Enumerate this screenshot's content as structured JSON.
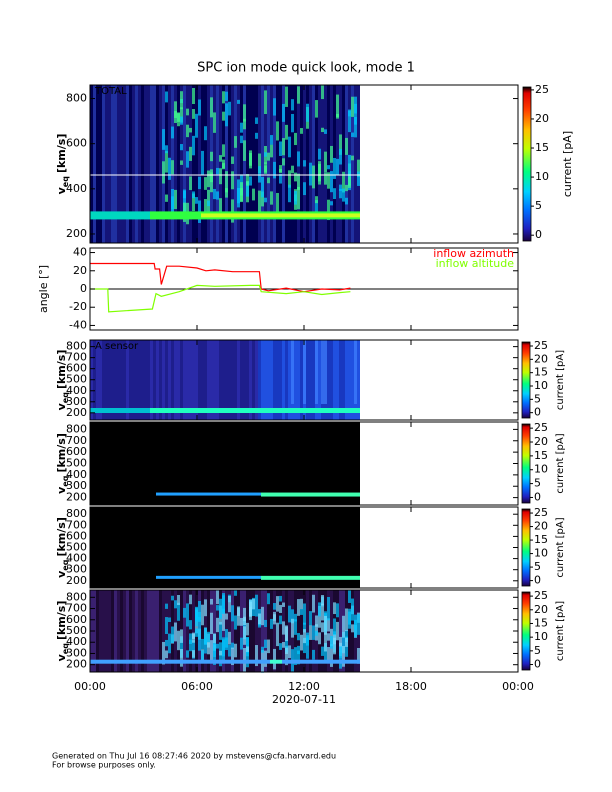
{
  "title": "SPC ion mode quick look, mode 1",
  "x_axis": {
    "xlim": [
      0,
      24
    ],
    "xticks": [
      {
        "value": 0,
        "label": "00:00"
      },
      {
        "value": 6,
        "label": "06:00"
      },
      {
        "value": 12,
        "label": "12:00"
      },
      {
        "value": 18,
        "label": "18:00"
      },
      {
        "value": 24,
        "label": "00:00"
      }
    ],
    "label": "2020-07-11"
  },
  "chart_data": [
    {
      "type": "spectrogram",
      "label": "TOTAL",
      "ylabel": {
        "symbol": "v",
        "subscript": "eq",
        "unit": "[km/s]"
      },
      "ylim": [
        160,
        860
      ],
      "yticks": [
        200,
        400,
        600,
        800
      ],
      "colorbar": {
        "label": "current [pA]",
        "lim": [
          -1,
          25.5
        ],
        "ticks": [
          0,
          5,
          10,
          15,
          20,
          25
        ]
      }
    },
    {
      "type": "line",
      "ylabel": "angle [°]",
      "ylim": [
        -45,
        45
      ],
      "yticks": [
        -40,
        -20,
        0,
        20,
        40
      ],
      "reference_line": 0,
      "series": [
        {
          "name": "inflow azimuth",
          "color": "#ff0000",
          "x": [
            0,
            3.6,
            3.65,
            3.9,
            4.0,
            4.3,
            5,
            6,
            6.5,
            7,
            8,
            9,
            9.5,
            9.6,
            10,
            11,
            12,
            13,
            14,
            14.6
          ],
          "values": [
            28,
            28,
            22,
            22,
            5,
            25,
            25,
            23,
            20,
            21,
            19,
            19,
            19,
            0,
            -2,
            1,
            -3,
            0,
            -1,
            1
          ]
        },
        {
          "name": "inflow altitude",
          "color": "#80ff00",
          "x": [
            0,
            1,
            1.05,
            3.5,
            3.7,
            4,
            5,
            6,
            7,
            9,
            9.5,
            9.6,
            11,
            12,
            13,
            14,
            14.6
          ],
          "values": [
            0,
            0,
            -25,
            -22,
            -5,
            -8,
            -3,
            4,
            3,
            4,
            4,
            -3,
            -5,
            -3,
            -6,
            -4,
            -3
          ]
        }
      ]
    },
    {
      "type": "spectrogram",
      "label": "A sensor",
      "ylabel": {
        "symbol": "v",
        "subscript": "eq",
        "unit": "[km/s]"
      },
      "ylim": [
        135,
        860
      ],
      "yticks": [
        200,
        300,
        400,
        500,
        600,
        700,
        800
      ],
      "colorbar": {
        "label": "current [pA]",
        "lim": [
          -2,
          26.5
        ],
        "ticks": [
          0,
          5,
          10,
          15,
          20,
          25
        ]
      }
    },
    {
      "type": "spectrogram",
      "ylabel": {
        "symbol": "v",
        "subscript": "eq",
        "unit": "[km/s]"
      },
      "ylim": [
        135,
        865
      ],
      "yticks": [
        200,
        300,
        400,
        500,
        600,
        700,
        800
      ],
      "colorbar": {
        "label": "current [pA]",
        "lim": [
          -2,
          26.5
        ],
        "ticks": [
          0,
          5,
          10,
          15,
          20,
          25
        ]
      }
    },
    {
      "type": "spectrogram",
      "ylabel": {
        "symbol": "v",
        "subscript": "eq",
        "unit": "[km/s]"
      },
      "ylim": [
        135,
        865
      ],
      "yticks": [
        200,
        300,
        400,
        500,
        600,
        700,
        800
      ],
      "colorbar": {
        "label": "current [pA]",
        "lim": [
          -2,
          26.5
        ],
        "ticks": [
          0,
          5,
          10,
          15,
          20,
          25
        ]
      }
    },
    {
      "type": "spectrogram",
      "ylabel": {
        "symbol": "v",
        "subscript": "eq",
        "unit": "[km/s]"
      },
      "ylim": [
        135,
        865
      ],
      "yticks": [
        200,
        300,
        400,
        500,
        600,
        700,
        800
      ],
      "colorbar": {
        "label": "current [pA]",
        "lim": [
          -2,
          26.5
        ],
        "ticks": [
          0,
          5,
          10,
          15,
          20,
          25
        ]
      }
    }
  ],
  "footer": [
    "Generated on Thu Jul 16 08:27:46 2020 by mstevens@cfa.harvard.edu",
    "For browse purposes only."
  ]
}
